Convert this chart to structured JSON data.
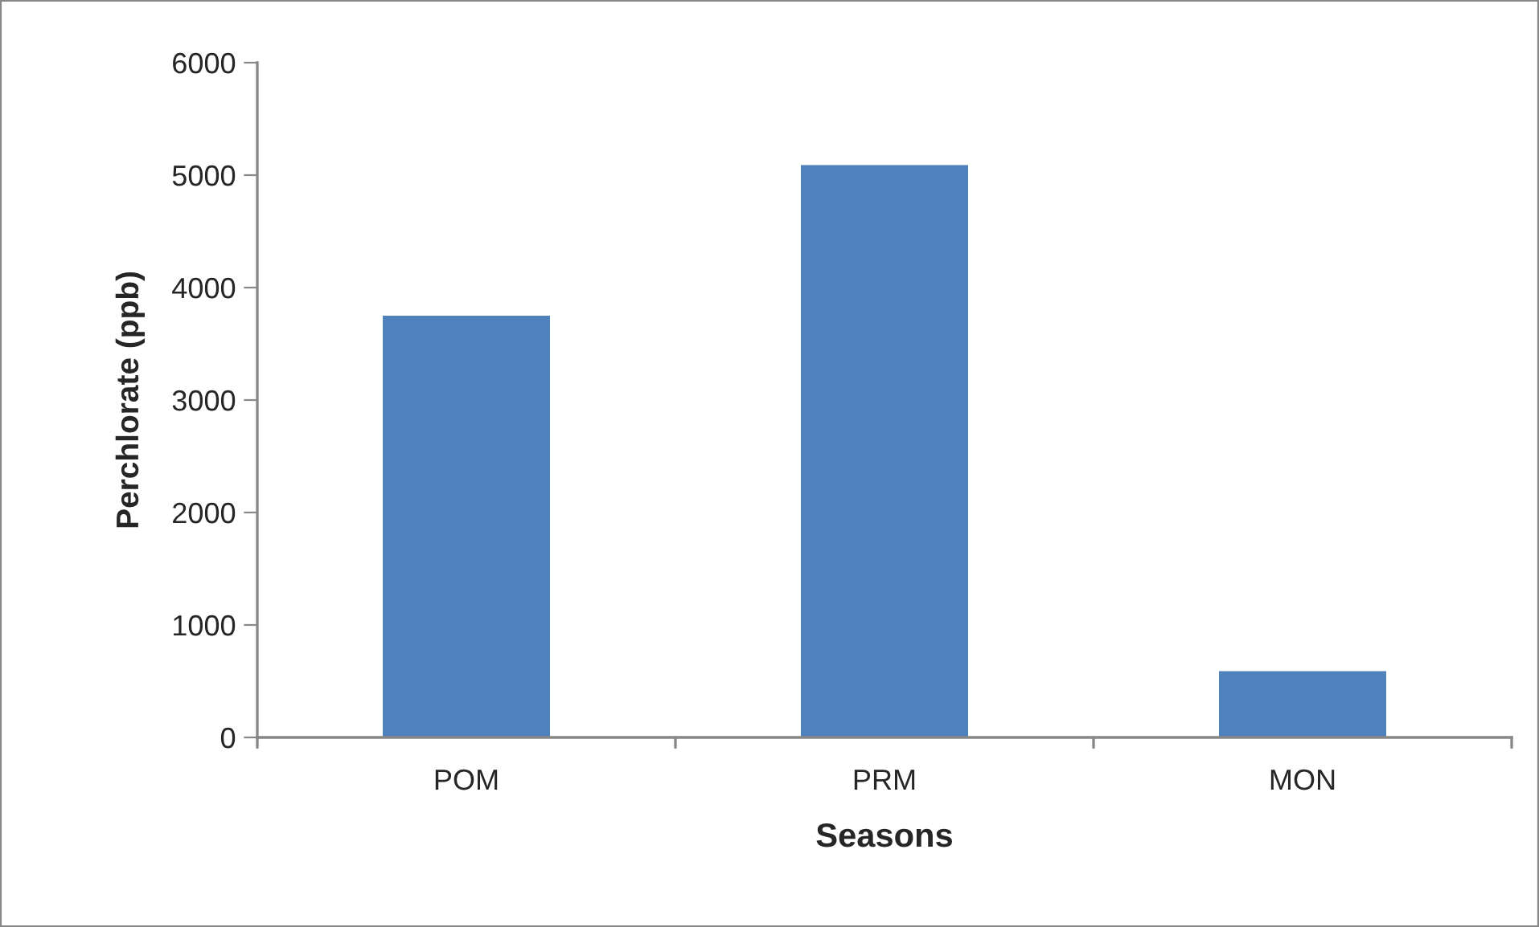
{
  "chart_data": {
    "type": "bar",
    "xlabel": "Seasons",
    "ylabel": "Perchlorate (ppb)",
    "categories": [
      "POM",
      "PRM",
      "MON"
    ],
    "values": [
      3750,
      5090,
      590
    ],
    "color": "#4f81bd",
    "ylim": [
      0,
      6000
    ],
    "yticks": [
      0,
      1000,
      2000,
      3000,
      4000,
      5000,
      6000
    ],
    "grid": false,
    "legend": false
  }
}
